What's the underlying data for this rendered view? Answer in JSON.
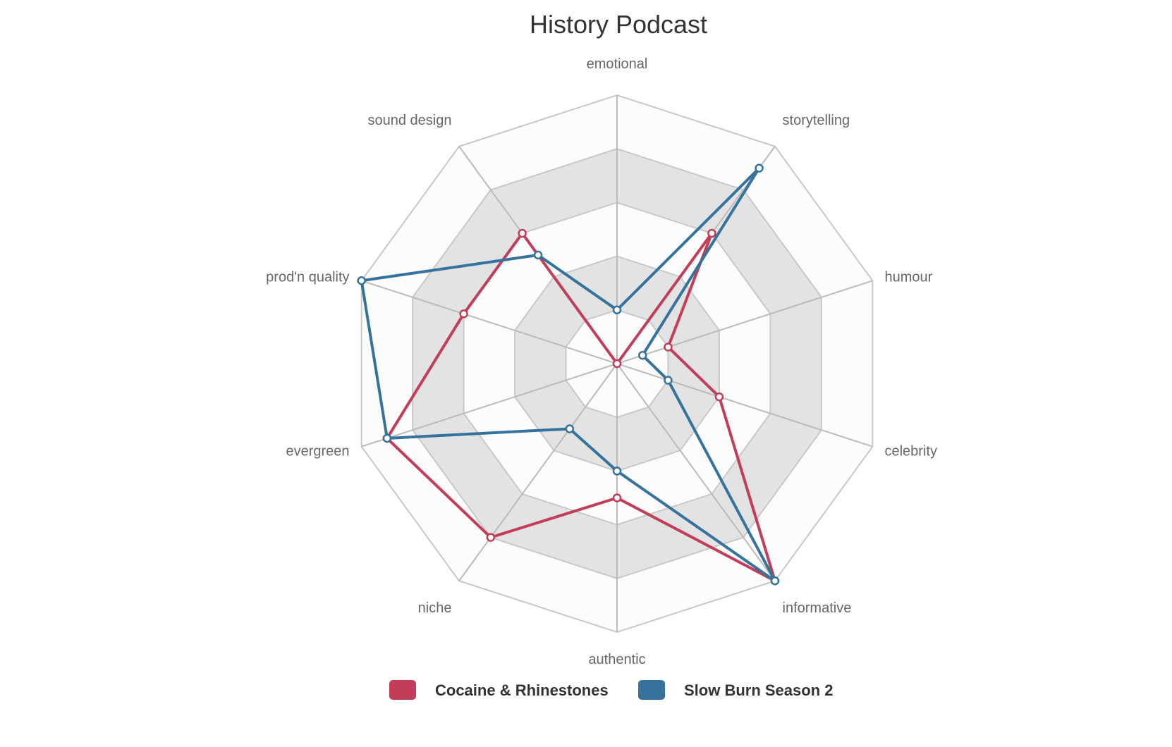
{
  "chart_data": {
    "type": "radar",
    "title": "History Podcast",
    "categories": [
      "emotional",
      "storytelling",
      "humour",
      "celebrity",
      "informative",
      "authentic",
      "niche",
      "evergreen",
      "prod'n quality",
      "sound design"
    ],
    "series": [
      {
        "name": "Cocaine & Rhinestones",
        "color": "#c33d58",
        "values": [
          0,
          3,
          1,
          2,
          5,
          2.5,
          4,
          4.5,
          3,
          3
        ]
      },
      {
        "name": "Slow Burn Season 2",
        "color": "#35739d",
        "values": [
          1,
          4.5,
          0.5,
          1,
          5,
          2,
          1.5,
          4.5,
          5,
          2.5
        ]
      }
    ],
    "rlim": [
      0,
      5
    ],
    "ring_count": 5,
    "grid": true,
    "legend_position": "bottom"
  },
  "legend": {
    "items": [
      {
        "label": "Cocaine & Rhinestones",
        "color": "#c33d58"
      },
      {
        "label": "Slow Burn Season 2",
        "color": "#35739d"
      }
    ]
  }
}
